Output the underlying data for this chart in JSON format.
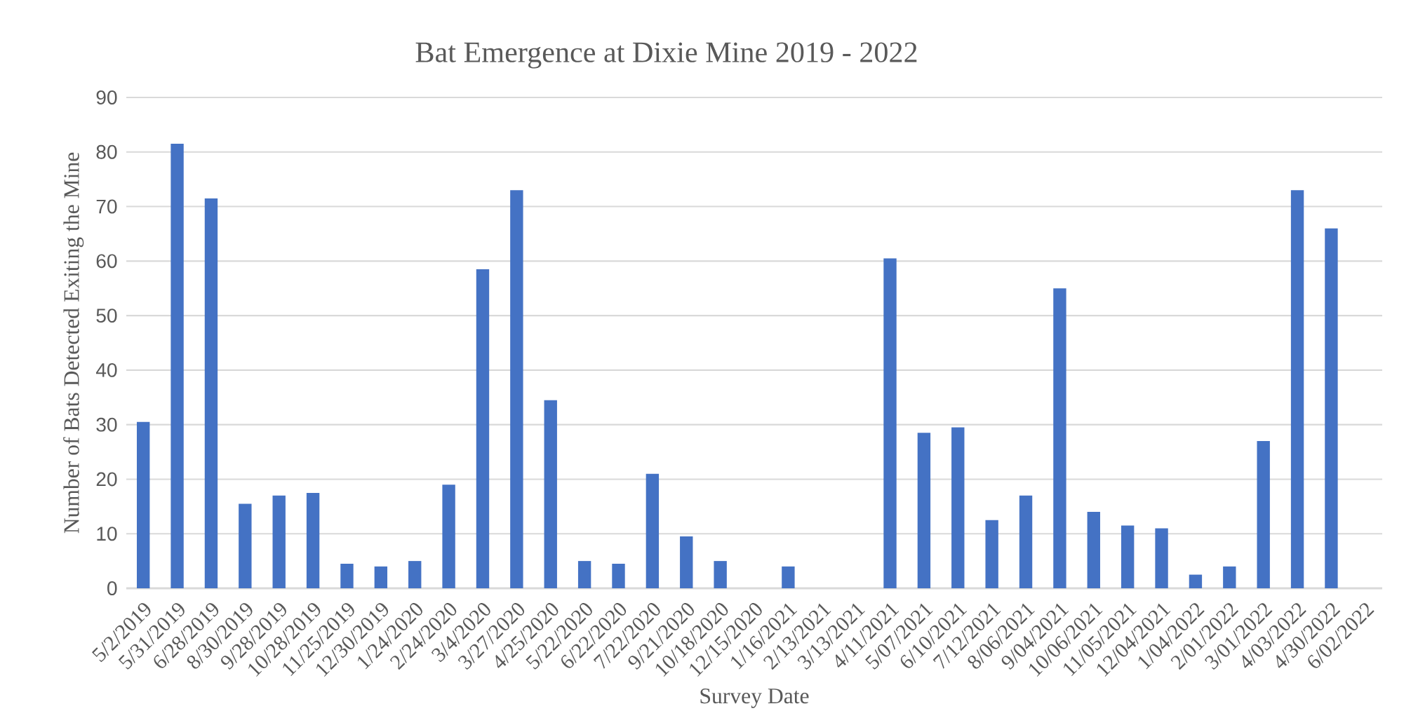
{
  "chart_data": {
    "type": "bar",
    "title": "Bat Emergence at Dixie Mine 2019 - 2022",
    "xlabel": "Survey Date",
    "ylabel": "Number of Bats Detected Exiting the Mine",
    "categories": [
      "5/2/2019",
      "5/31/2019",
      "6/28/2019",
      "8/30/2019",
      "9/28/2019",
      "10/28/2019",
      "11/25/2019",
      "12/30/2019",
      "1/24/2020",
      "2/24/2020",
      "3/4/2020",
      "3/27/2020",
      "4/25/2020",
      "5/22/2020",
      "6/22/2020",
      "7/22/2020",
      "9/21/2020",
      "10/18/2020",
      "12/15/2020",
      "1/16/2021",
      "2/13/2021",
      "3/13/2021",
      "4/11/2021",
      "5/07/2021",
      "6/10/2021",
      "7/12/2021",
      "8/06/2021",
      "9/04/2021",
      "10/06/2021",
      "11/05/2021",
      "12/04/2021",
      "1/04/2022",
      "2/01/2022",
      "3/01/2022",
      "4/03/2022",
      "4/30/2022",
      "6/02/2022"
    ],
    "values": [
      30.5,
      81.5,
      71.5,
      15.5,
      17,
      17.5,
      4.5,
      4,
      5,
      19,
      58.5,
      73,
      34.5,
      5,
      4.5,
      21,
      9.5,
      5,
      0,
      4,
      0,
      0,
      60.5,
      28.5,
      29.5,
      12.5,
      17,
      55,
      14,
      11.5,
      11,
      2.5,
      4,
      27,
      73,
      66,
      null
    ],
    "color": "#4472c4",
    "ylim": [
      0,
      90
    ],
    "yticks": [
      0,
      10,
      20,
      30,
      40,
      50,
      60,
      70,
      80,
      90
    ],
    "grid": "y"
  }
}
